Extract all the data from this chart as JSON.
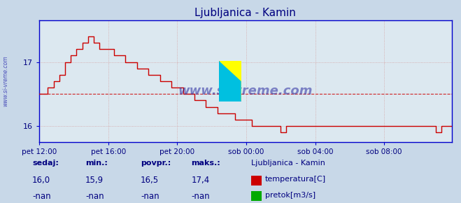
{
  "title": "Ljubljanica - Kamin",
  "title_color": "#000080",
  "bg_color": "#c8d8e8",
  "plot_bg_color": "#dce8f0",
  "grid_color": "#d0a0a0",
  "axis_color": "#0000cc",
  "watermark": "www.si-vreme.com",
  "x_labels": [
    "pet 12:00",
    "pet 16:00",
    "pet 20:00",
    "sob 00:00",
    "sob 04:00",
    "sob 08:00"
  ],
  "x_ticks_pos": [
    0,
    48,
    96,
    144,
    192,
    240
  ],
  "ylim": [
    15.75,
    17.65
  ],
  "yticks": [
    16,
    17
  ],
  "avg_line": 16.5,
  "line_color": "#cc0000",
  "legend_title": "Ljubljanica - Kamin",
  "stats_labels": [
    "sedaj:",
    "min.:",
    "povpr.:",
    "maks.:"
  ],
  "stats_temp": [
    "16,0",
    "15,9",
    "16,5",
    "17,4"
  ],
  "stats_flow": [
    "-nan",
    "-nan",
    "-nan",
    "-nan"
  ],
  "n_points": 288
}
